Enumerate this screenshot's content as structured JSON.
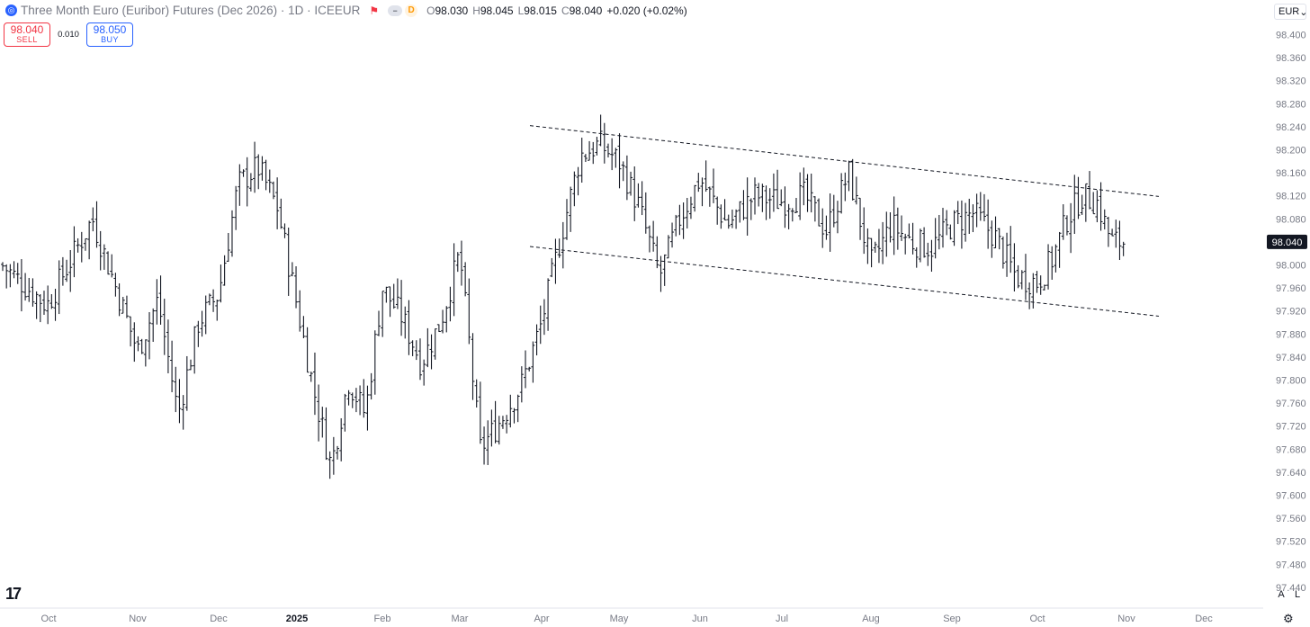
{
  "header": {
    "title": "Three Month Euro (Euribor) Futures (Dec 2026) · 1D · ICEEUR",
    "pill_dash": "−",
    "pill_letter": "D",
    "open_label": "O",
    "open": "98.030",
    "high_label": "H",
    "high": "98.045",
    "low_label": "L",
    "low": "98.015",
    "close_label": "C",
    "close": "98.040",
    "change": "+0.020 (+0.02%)"
  },
  "trade": {
    "sell_price": "98.040",
    "sell_label": "SELL",
    "spread": "0.010",
    "buy_price": "98.050",
    "buy_label": "BUY"
  },
  "currency": {
    "label": "EUR",
    "caret": "⌄"
  },
  "buttons": {
    "auto": "A",
    "log": "L",
    "settings": "⚙"
  },
  "logo_text": "17",
  "colors": {
    "bars": "#131722",
    "sell": "#f23645",
    "buy": "#2962ff",
    "grid_text": "#787b86",
    "last_price_bg": "#131722"
  },
  "chart_data": {
    "type": "ohlc-bar",
    "title": "Three Month Euro (Euribor) Futures (Dec 2026)",
    "xlabel": "",
    "ylabel": "",
    "ylim": [
      97.44,
      98.42
    ],
    "y_ticks": [
      "98.400",
      "98.360",
      "98.320",
      "98.280",
      "98.240",
      "98.200",
      "98.160",
      "98.120",
      "98.080",
      "98.040",
      "98.000",
      "97.960",
      "97.920",
      "97.880",
      "97.840",
      "97.800",
      "97.760",
      "97.720",
      "97.680",
      "97.640",
      "97.600",
      "97.560",
      "97.520",
      "97.480",
      "97.440"
    ],
    "x_ticks": [
      "Oct",
      "Nov",
      "Dec",
      "2025",
      "Feb",
      "Mar",
      "Apr",
      "May",
      "Jun",
      "Jul",
      "Aug",
      "Sep",
      "Oct",
      "Nov",
      "Dec"
    ],
    "last_price": "98.040",
    "anchors": [
      [
        "Oct",
        98.0
      ],
      [
        "Oct",
        97.93
      ],
      [
        "Oct",
        98.08
      ],
      [
        "Nov",
        97.85
      ],
      [
        "Nov",
        97.94
      ],
      [
        "Nov",
        97.74
      ],
      [
        "Nov",
        97.9
      ],
      [
        "Dec",
        97.95
      ],
      [
        "Dec",
        98.14
      ],
      [
        "Dec",
        98.17
      ],
      [
        "Dec",
        98.1
      ],
      [
        "2025",
        97.93
      ],
      [
        "2025",
        97.78
      ],
      [
        "2025",
        97.65
      ],
      [
        "2025",
        97.8
      ],
      [
        "2025",
        97.74
      ],
      [
        "Feb",
        97.96
      ],
      [
        "Feb",
        97.91
      ],
      [
        "Feb",
        97.83
      ],
      [
        "Feb",
        97.9
      ],
      [
        "Mar",
        98.02
      ],
      [
        "Mar",
        97.68
      ],
      [
        "Mar",
        97.73
      ],
      [
        "Mar",
        97.79
      ],
      [
        "Apr",
        97.9
      ],
      [
        "Apr",
        98.05
      ],
      [
        "Apr",
        98.19
      ],
      [
        "Apr",
        98.21
      ],
      [
        "May",
        98.18
      ],
      [
        "May",
        98.1
      ],
      [
        "May",
        97.98
      ],
      [
        "May",
        98.08
      ],
      [
        "Jun",
        98.15
      ],
      [
        "Jun",
        98.07
      ],
      [
        "Jun",
        98.12
      ],
      [
        "Jul",
        98.11
      ],
      [
        "Jul",
        98.12
      ],
      [
        "Jul",
        98.06
      ],
      [
        "Jul",
        98.16
      ],
      [
        "Aug",
        98.0
      ],
      [
        "Aug",
        98.07
      ],
      [
        "Aug",
        98.04
      ],
      [
        "Aug",
        98.03
      ],
      [
        "Sep",
        98.07
      ],
      [
        "Sep",
        98.09
      ],
      [
        "Sep",
        98.05
      ],
      [
        "Sep",
        97.98
      ],
      [
        "Oct",
        97.97
      ],
      [
        "Oct",
        98.01
      ],
      [
        "Oct",
        98.08
      ],
      [
        "Oct",
        98.12
      ],
      [
        "Oct",
        98.11
      ],
      [
        "Oct",
        98.04
      ]
    ],
    "channel": {
      "upper": [
        [
          "Apr",
          98.242
        ],
        [
          "Nov",
          98.119
        ]
      ],
      "lower": [
        [
          "Apr",
          98.032
        ],
        [
          "Nov",
          97.911
        ]
      ]
    }
  }
}
